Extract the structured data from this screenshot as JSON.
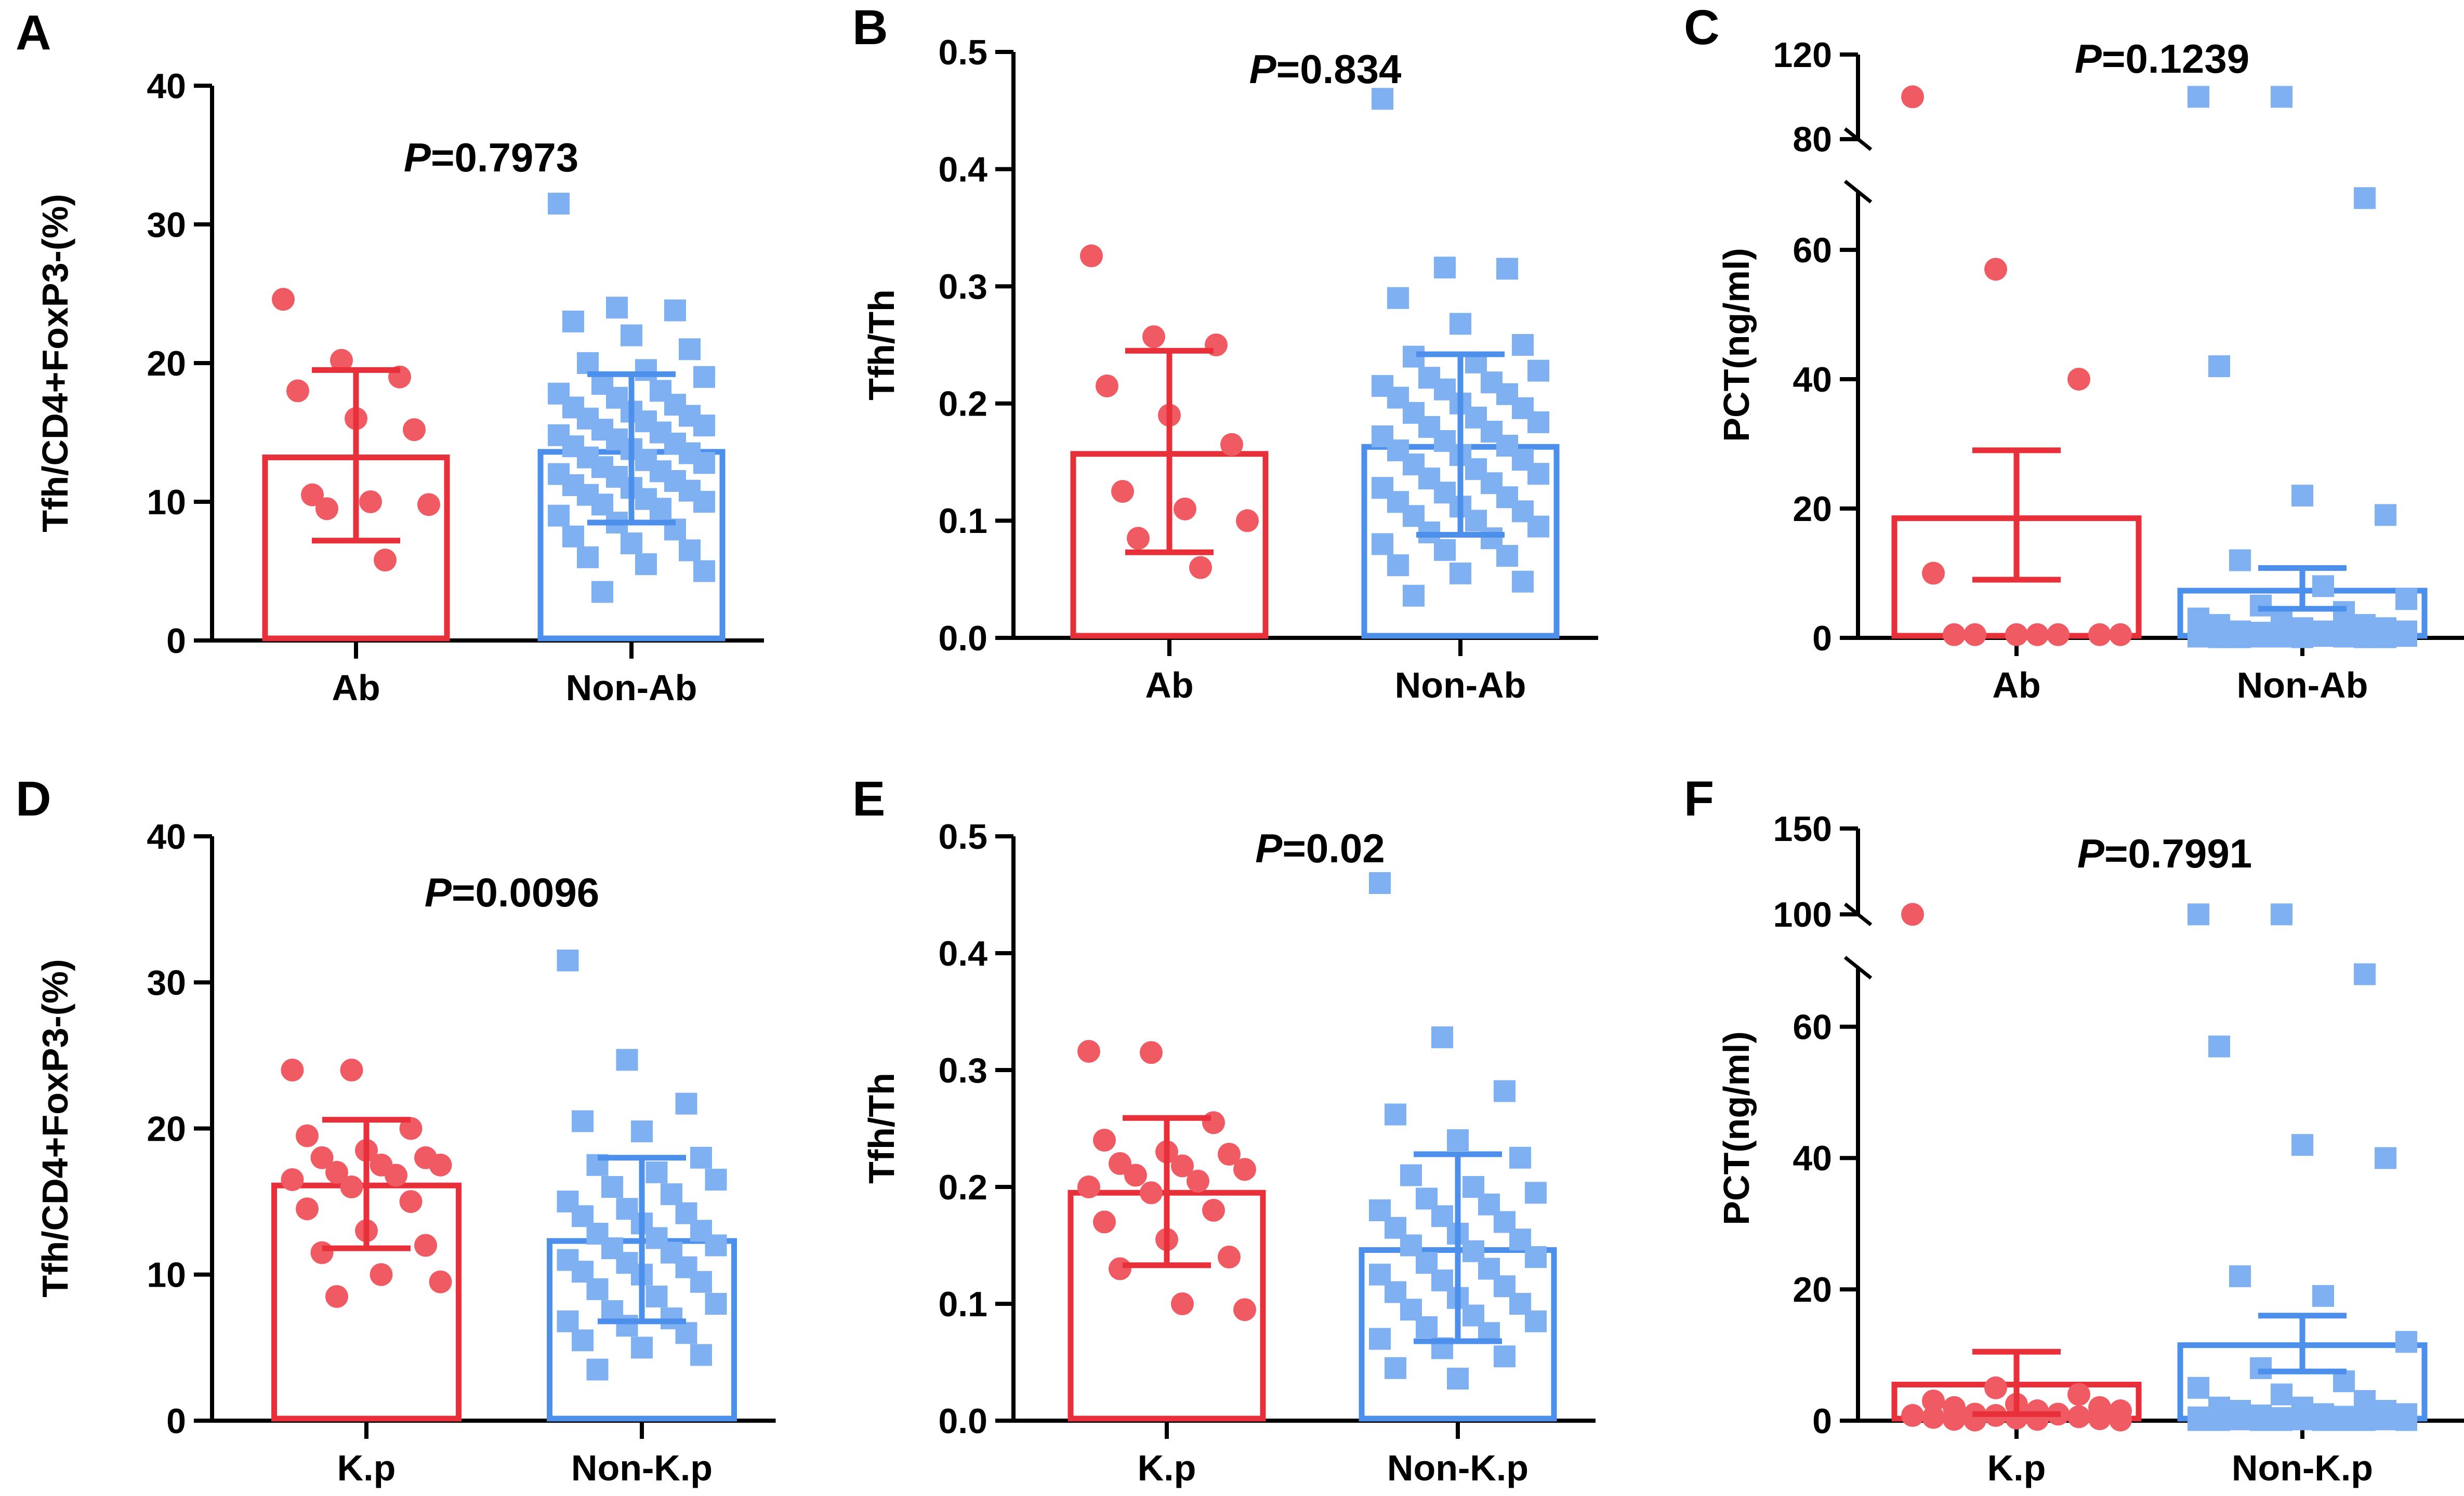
{
  "colors": {
    "group1": "#e8303a",
    "group1_points": "#ef5a63",
    "group2": "#4d90ec",
    "group2_points": "#7fb1f2",
    "axis": "#000000"
  },
  "chart_data": [
    {
      "type": "bar",
      "panel_letter": "A",
      "title": "",
      "p_label": "P",
      "p_value": "=0.7973",
      "ylabel": "Tfh/CD4+FoxP3-(%)",
      "xlabel": "",
      "ylim": [
        0,
        40
      ],
      "yticks": [
        "0",
        "10",
        "20",
        "30",
        "40"
      ],
      "categories": [
        "Ab",
        "Non-Ab"
      ],
      "series": [
        {
          "name": "Ab",
          "mean": 13.2,
          "err_low": 7.2,
          "err_high": 19.5,
          "points": [
            24.6,
            20.2,
            19.0,
            18.0,
            16.0,
            15.2,
            10.5,
            10.0,
            9.8,
            9.5,
            5.8
          ]
        },
        {
          "name": "Non-Ab",
          "mean": 13.6,
          "err_low": 8.5,
          "err_high": 19.2,
          "points": [
            31.5,
            24.0,
            23.8,
            23.0,
            22.0,
            21.0,
            20.0,
            19.5,
            19.0,
            18.5,
            18.0,
            17.8,
            17.5,
            17.0,
            16.8,
            16.5,
            16.2,
            16.0,
            15.8,
            15.5,
            15.2,
            15.0,
            14.8,
            14.5,
            14.2,
            14.0,
            13.8,
            13.5,
            13.2,
            13.0,
            12.8,
            12.5,
            12.2,
            12.0,
            11.8,
            11.5,
            11.2,
            11.0,
            10.8,
            10.5,
            10.2,
            10.0,
            9.8,
            9.5,
            9.0,
            8.5,
            8.0,
            7.5,
            7.0,
            6.5,
            6.0,
            5.5,
            5.0,
            3.5
          ]
        }
      ]
    },
    {
      "type": "bar",
      "panel_letter": "B",
      "title": "",
      "p_label": "P",
      "p_value": "=0.834",
      "ylabel": "Tfh/Th",
      "xlabel": "",
      "ylim": [
        0,
        0.5
      ],
      "yticks": [
        "0.0",
        "0.1",
        "0.2",
        "0.3",
        "0.4",
        "0.5"
      ],
      "categories": [
        "Ab",
        "Non-Ab"
      ],
      "series": [
        {
          "name": "Ab",
          "mean": 0.157,
          "err_low": 0.073,
          "err_high": 0.245,
          "points": [
            0.326,
            0.257,
            0.25,
            0.215,
            0.19,
            0.165,
            0.125,
            0.11,
            0.1,
            0.085,
            0.06
          ]
        },
        {
          "name": "Non-Ab",
          "mean": 0.163,
          "err_low": 0.088,
          "err_high": 0.242,
          "points": [
            0.46,
            0.316,
            0.315,
            0.29,
            0.268,
            0.25,
            0.24,
            0.235,
            0.228,
            0.222,
            0.218,
            0.215,
            0.212,
            0.208,
            0.205,
            0.2,
            0.196,
            0.192,
            0.188,
            0.184,
            0.18,
            0.176,
            0.172,
            0.168,
            0.164,
            0.16,
            0.156,
            0.152,
            0.148,
            0.144,
            0.14,
            0.136,
            0.132,
            0.128,
            0.124,
            0.12,
            0.116,
            0.112,
            0.108,
            0.104,
            0.1,
            0.095,
            0.09,
            0.085,
            0.08,
            0.075,
            0.07,
            0.062,
            0.055,
            0.048,
            0.036
          ]
        }
      ]
    },
    {
      "type": "bar",
      "panel_letter": "C",
      "title": "",
      "p_label": "P",
      "p_value": "=0.1239",
      "ylabel": "PCT(ng/ml)",
      "xlabel": "",
      "ylim": [
        0,
        120
      ],
      "yticks": [
        "0",
        "20",
        "40",
        "60",
        "80",
        "120"
      ],
      "categories": [
        "Ab",
        "Non-Ab"
      ],
      "series": [
        {
          "name": "Ab",
          "mean": 18.5,
          "err_low": 9.0,
          "err_high": 29.0,
          "points": [
            100,
            57,
            40,
            10,
            0.5,
            0.5,
            0.5,
            0.5,
            0.5,
            0.5,
            0.5
          ]
        },
        {
          "name": "Non-Ab",
          "mean": 7.3,
          "err_low": 4.5,
          "err_high": 10.8,
          "points": [
            100,
            100,
            68,
            42,
            22,
            19,
            12,
            8,
            6,
            5,
            4,
            3,
            3,
            2,
            2,
            1.5,
            1.5,
            1,
            1,
            1,
            0.8,
            0.8,
            0.6,
            0.6,
            0.5,
            0.5,
            0.4,
            0.4,
            0.3,
            0.3,
            0.3,
            0.2,
            0.2,
            0.2,
            0.2,
            0.1,
            0.1,
            0.1,
            0.1,
            0.1
          ]
        }
      ]
    },
    {
      "type": "bar",
      "panel_letter": "D",
      "title": "",
      "p_label": "P",
      "p_value": "=0.0096",
      "ylabel": "Tfh/CD4+FoxP3-(%)",
      "xlabel": "",
      "ylim": [
        0,
        40
      ],
      "yticks": [
        "0",
        "10",
        "20",
        "30",
        "40"
      ],
      "categories": [
        "K.p",
        "Non-K.p"
      ],
      "series": [
        {
          "name": "K.p",
          "mean": 16.1,
          "err_low": 11.8,
          "err_high": 20.6,
          "points": [
            24.0,
            24.0,
            20.0,
            19.5,
            18.5,
            18.0,
            18.0,
            17.5,
            17.5,
            17.0,
            16.8,
            16.5,
            16.0,
            15.0,
            14.5,
            13.0,
            12.0,
            11.5,
            10.0,
            9.5,
            8.5
          ]
        },
        {
          "name": "Non-K.p",
          "mean": 12.3,
          "err_low": 6.8,
          "err_high": 18.0,
          "points": [
            31.5,
            24.7,
            21.7,
            20.5,
            19.8,
            18.0,
            17.5,
            17.0,
            16.5,
            16.0,
            15.5,
            15.0,
            14.5,
            14.2,
            14.0,
            13.5,
            13.0,
            12.8,
            12.5,
            12.0,
            11.8,
            11.5,
            11.0,
            10.8,
            10.5,
            10.2,
            10.0,
            9.5,
            9.0,
            8.5,
            8.0,
            7.5,
            7.0,
            6.8,
            6.5,
            6.0,
            5.5,
            5.0,
            4.5,
            3.5
          ]
        }
      ]
    },
    {
      "type": "bar",
      "panel_letter": "E",
      "title": "",
      "p_label": "P",
      "p_value": "=0.02",
      "ylabel": "Tfh/Th",
      "xlabel": "",
      "ylim": [
        0,
        0.5
      ],
      "yticks": [
        "0.0",
        "0.1",
        "0.2",
        "0.3",
        "0.4",
        "0.5"
      ],
      "categories": [
        "K.p",
        "Non-K.p"
      ],
      "series": [
        {
          "name": "K.p",
          "mean": 0.195,
          "err_low": 0.133,
          "err_high": 0.259,
          "points": [
            0.316,
            0.315,
            0.255,
            0.24,
            0.23,
            0.228,
            0.22,
            0.218,
            0.215,
            0.21,
            0.205,
            0.2,
            0.195,
            0.18,
            0.17,
            0.155,
            0.14,
            0.13,
            0.1,
            0.095
          ]
        },
        {
          "name": "Non-K.p",
          "mean": 0.146,
          "err_low": 0.068,
          "err_high": 0.228,
          "points": [
            0.46,
            0.328,
            0.282,
            0.262,
            0.24,
            0.225,
            0.21,
            0.2,
            0.195,
            0.19,
            0.185,
            0.18,
            0.175,
            0.17,
            0.165,
            0.16,
            0.155,
            0.15,
            0.145,
            0.14,
            0.135,
            0.13,
            0.125,
            0.12,
            0.115,
            0.11,
            0.105,
            0.1,
            0.095,
            0.09,
            0.085,
            0.08,
            0.075,
            0.07,
            0.062,
            0.055,
            0.045,
            0.036
          ]
        }
      ]
    },
    {
      "type": "bar",
      "panel_letter": "F",
      "title": "",
      "p_label": "P",
      "p_value": "=0.7991",
      "ylabel": "PCT(ng/ml)",
      "xlabel": "",
      "ylim": [
        0,
        150
      ],
      "yticks": [
        "0",
        "20",
        "40",
        "60",
        "100",
        "150"
      ],
      "categories": [
        "K.p",
        "Non-K.p"
      ],
      "series": [
        {
          "name": "K.p",
          "mean": 5.5,
          "err_low": 1.0,
          "err_high": 10.5,
          "points": [
            100,
            5,
            4,
            3,
            2.5,
            2,
            2,
            1.5,
            1.5,
            1,
            1,
            0.8,
            0.8,
            0.6,
            0.5,
            0.4,
            0.3,
            0.2,
            0.2,
            0.1,
            0.1
          ]
        },
        {
          "name": "Non-K.p",
          "mean": 11.5,
          "err_low": 7.5,
          "err_high": 16.0,
          "points": [
            100,
            100,
            68,
            57,
            42,
            40,
            22,
            19,
            12,
            8,
            6,
            5,
            4,
            3,
            2,
            2,
            1.5,
            1.5,
            1,
            1,
            0.8,
            0.6,
            0.5,
            0.4,
            0.3,
            0.3,
            0.2,
            0.2,
            0.2,
            0.1,
            0.1,
            0.1,
            0.1,
            0.1,
            0.1,
            0.1,
            0.1
          ]
        }
      ]
    }
  ]
}
